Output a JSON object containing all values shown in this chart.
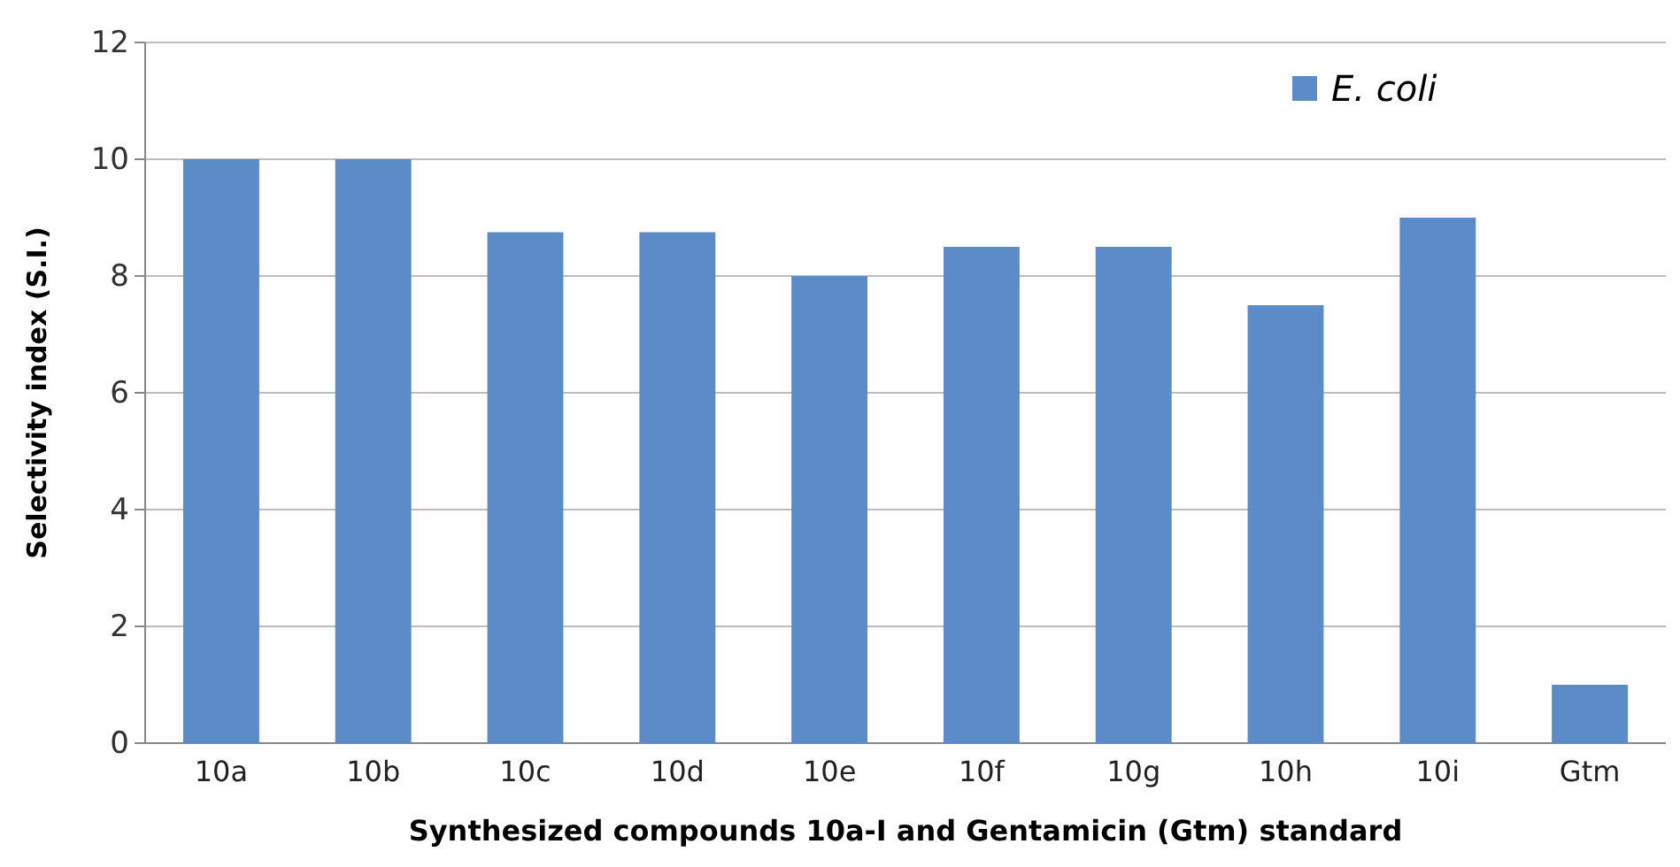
{
  "chart_data": {
    "type": "bar",
    "xlabel": "Synthesized compounds 10a-I and Gentamicin (Gtm) standard",
    "ylabel": "Selectivity index (S.I.)",
    "categories": [
      "10a",
      "10b",
      "10c",
      "10d",
      "10e",
      "10f",
      "10g",
      "10h",
      "10i",
      "Gtm"
    ],
    "series": [
      {
        "name": "E. coli",
        "color": "#5b8cc7",
        "values": [
          10,
          10,
          8.75,
          8.75,
          8,
          8.5,
          8.5,
          7.5,
          9,
          1
        ]
      }
    ],
    "ylim": [
      0,
      12
    ],
    "yticks": [
      0,
      2,
      4,
      6,
      8,
      10,
      12
    ],
    "grid": "y",
    "legend": "top right"
  }
}
